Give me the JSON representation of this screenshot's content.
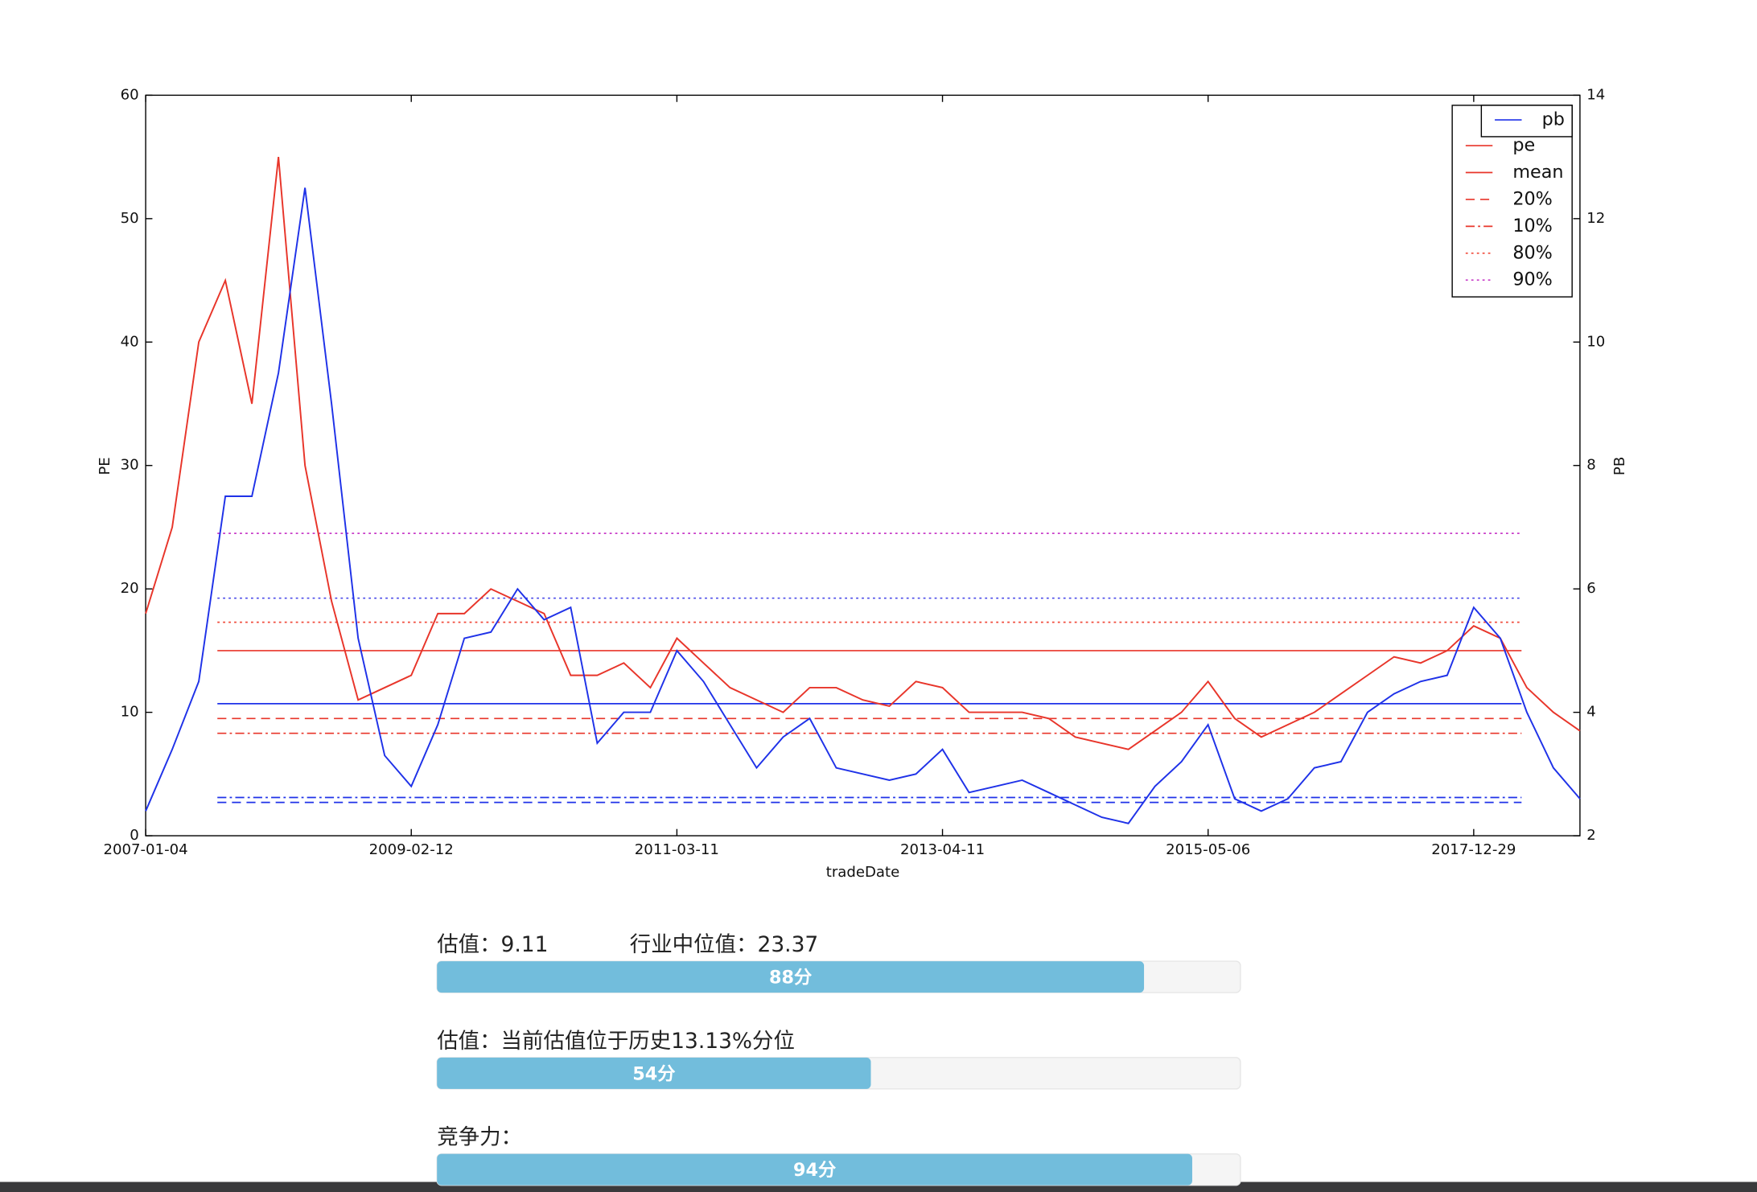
{
  "chart_data": {
    "type": "line",
    "x_label": "tradeDate",
    "y_label": "PE",
    "y2_label": "PB",
    "categories": [
      "2007-01-04",
      null,
      null,
      null,
      null,
      null,
      null,
      null,
      null,
      null,
      "2009-02-12",
      null,
      null,
      null,
      null,
      null,
      null,
      null,
      null,
      null,
      "2011-03-11",
      null,
      null,
      null,
      null,
      null,
      null,
      null,
      null,
      null,
      "2013-04-11",
      null,
      null,
      null,
      null,
      null,
      null,
      null,
      null,
      null,
      "2015-05-06",
      null,
      null,
      null,
      null,
      null,
      null,
      null,
      null,
      null,
      "2017-12-29",
      null,
      null,
      null,
      null
    ],
    "series": [
      {
        "name": "pe",
        "color": "#e8352a",
        "values": [
          18,
          25,
          40,
          45,
          35,
          55,
          30,
          19,
          11,
          12,
          13,
          18,
          18,
          20,
          19,
          18,
          13,
          13,
          14,
          12,
          16,
          14,
          12,
          11,
          10,
          12,
          12,
          11,
          10.5,
          12.5,
          12,
          10,
          10,
          10,
          9.5,
          8,
          7.5,
          7,
          8.5,
          10,
          12.5,
          9.5,
          8,
          9,
          10,
          11.5,
          13,
          14.5,
          14,
          15,
          17,
          16,
          12,
          10,
          8.5
        ]
      },
      {
        "name": "pb",
        "color": "#1f32e8",
        "axis": "y2",
        "values": [
          2.4,
          3.4,
          4.5,
          7.5,
          7.5,
          9.5,
          12.5,
          9,
          5.2,
          3.3,
          2.8,
          3.8,
          5.2,
          5.3,
          6,
          5.5,
          5.7,
          3.5,
          4,
          4,
          5,
          4.5,
          3.8,
          3.1,
          3.6,
          3.9,
          3.1,
          3,
          2.9,
          3,
          3.4,
          2.7,
          2.8,
          2.9,
          2.7,
          2.5,
          2.3,
          2.2,
          2.8,
          3.2,
          3.8,
          2.6,
          2.4,
          2.6,
          3.1,
          3.2,
          4,
          4.3,
          4.5,
          4.6,
          5.7,
          5.2,
          4,
          3.1,
          2.6
        ]
      }
    ],
    "reference_lines": [
      {
        "name": "mean",
        "value": 15,
        "color": "#e8352a",
        "style": "solid"
      },
      {
        "name": "20%",
        "value": 9.5,
        "color": "#e8352a",
        "style": "dashed"
      },
      {
        "name": "10%",
        "value": 8.3,
        "color": "#e8352a",
        "style": "dashdot"
      },
      {
        "name": "80%",
        "value": 17.3,
        "color": "#f04a3a",
        "style": "dotted"
      },
      {
        "name": "90%",
        "value": 24.5,
        "color": "#c83cc8",
        "style": "dotted"
      },
      {
        "value": 4.14,
        "color": "#1f32e8",
        "style": "solid",
        "axis": "y2"
      },
      {
        "value": 2.54,
        "color": "#1f32e8",
        "style": "dashed",
        "axis": "y2"
      },
      {
        "value": 2.62,
        "color": "#1f32e8",
        "style": "dashdot",
        "axis": "y2"
      },
      {
        "value": 5.85,
        "color": "#4a4ae8",
        "style": "dotted",
        "axis": "y2"
      }
    ],
    "ylim": [
      0,
      60
    ],
    "yticks": [
      0,
      10,
      20,
      30,
      40,
      50,
      60
    ],
    "y2lim": [
      2,
      14
    ],
    "y2ticks": [
      2,
      4,
      6,
      8,
      10,
      12,
      14
    ],
    "legend": "upper right"
  },
  "scores": [
    {
      "caption": "估值：9.11",
      "caption_extra": "行业中位值：23.37",
      "value": 88,
      "value_label": "88分"
    },
    {
      "caption": "估值：当前估值位于历史13.13%分位",
      "value": 54,
      "value_label": "54分"
    },
    {
      "caption": "竞争力：",
      "value": 94,
      "value_label": "94分"
    }
  ]
}
